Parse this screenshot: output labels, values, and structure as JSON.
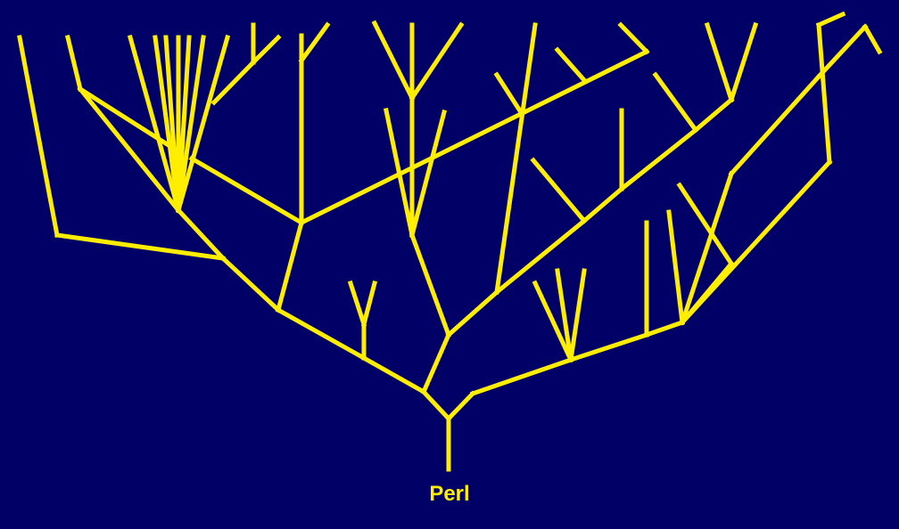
{
  "diagram": {
    "root_label": "Perl",
    "line_color": "#ffee00",
    "background_color": "#000066"
  }
}
